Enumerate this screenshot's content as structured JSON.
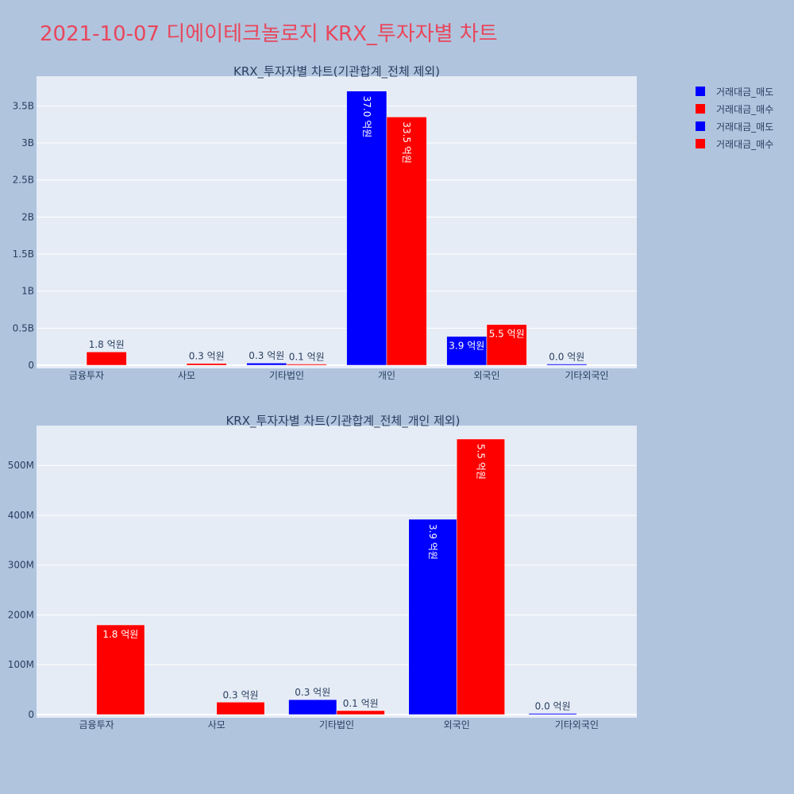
{
  "page_title": "2021-10-07 디에이테크놀로지 KRX_투자자별 차트",
  "legend": [
    {
      "label": "거래대금_매도",
      "color": "#0000ff"
    },
    {
      "label": "거래대금_매수",
      "color": "#ff0000"
    },
    {
      "label": "거래대금_매도",
      "color": "#0000ff"
    },
    {
      "label": "거래대금_매수",
      "color": "#ff0000"
    }
  ],
  "colors": {
    "sell": "#0000ff",
    "buy": "#ff0000",
    "plot_bg": "#e5ecf6",
    "page_bg": "#b0c4de"
  },
  "chart_data": [
    {
      "type": "bar",
      "title": "KRX_투자자별 차트(기관합계_전체 제외)",
      "categories": [
        "금융투자",
        "사모",
        "기타법인",
        "개인",
        "외국인",
        "기타외국인"
      ],
      "series": [
        {
          "name": "거래대금_매도",
          "values": [
            0,
            0,
            30000000,
            3700000000,
            390000000,
            1000000
          ],
          "labels": [
            "",
            "",
            "0.3 억원",
            "37.0 억원",
            "3.9 억원",
            "0.0 억원"
          ]
        },
        {
          "name": "거래대금_매수",
          "values": [
            180000000,
            25000000,
            8000000,
            3350000000,
            550000000,
            0
          ],
          "labels": [
            "1.8 억원",
            "0.3 억원",
            "0.1 억원",
            "33.5 억원",
            "5.5 억원",
            ""
          ]
        }
      ],
      "yticks": [
        "0",
        "0.5B",
        "1B",
        "1.5B",
        "2B",
        "2.5B",
        "3B",
        "3.5B"
      ],
      "ylim": [
        0,
        3900000000
      ]
    },
    {
      "type": "bar",
      "title": "KRX_투자자별 차트(기관합계_전체_개인 제외)",
      "categories": [
        "금융투자",
        "사모",
        "기타법인",
        "외국인",
        "기타외국인"
      ],
      "series": [
        {
          "name": "거래대금_매도",
          "values": [
            0,
            0,
            30000000,
            392000000,
            1000000
          ],
          "labels": [
            "",
            "",
            "0.3 억원",
            "3.9 억원",
            "0.0 억원"
          ]
        },
        {
          "name": "거래대금_매수",
          "values": [
            180000000,
            25000000,
            8000000,
            553000000,
            0
          ],
          "labels": [
            "1.8 억원",
            "0.3 억원",
            "0.1 억원",
            "5.5 억원",
            ""
          ]
        }
      ],
      "yticks": [
        "0",
        "100M",
        "200M",
        "300M",
        "400M",
        "500M"
      ],
      "ylim": [
        0,
        580000000
      ]
    }
  ]
}
